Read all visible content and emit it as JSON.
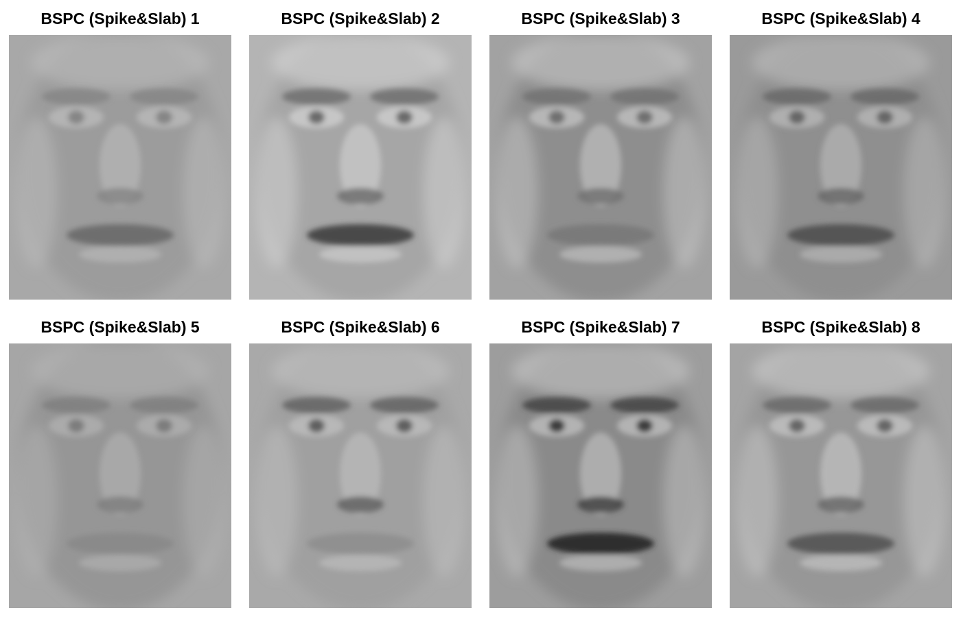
{
  "figure": {
    "panels": [
      {
        "title": "BSPC (Spike&Slab) 1",
        "bg": "#a8a8a8",
        "face": "#9c9c9c",
        "feature": "#858585",
        "mouth": "#6e6e6e",
        "highlight": "#bdbdbd",
        "icon": "face-component-image"
      },
      {
        "title": "BSPC (Spike&Slab) 2",
        "bg": "#b4b4b4",
        "face": "#a6a6a6",
        "feature": "#6a6a6a",
        "mouth": "#4a4a4a",
        "highlight": "#d4d4d4",
        "icon": "face-component-image"
      },
      {
        "title": "BSPC (Spike&Slab) 3",
        "bg": "#a2a2a2",
        "face": "#8e8e8e",
        "feature": "#6f6f6f",
        "mouth": "#7a7a7a",
        "highlight": "#c7c7c7",
        "icon": "face-component-image"
      },
      {
        "title": "BSPC (Spike&Slab) 4",
        "bg": "#9a9a9a",
        "face": "#8f8f8f",
        "feature": "#666666",
        "mouth": "#555555",
        "highlight": "#bcbcbc",
        "icon": "face-component-image"
      },
      {
        "title": "BSPC (Spike&Slab) 5",
        "bg": "#a6a6a6",
        "face": "#969696",
        "feature": "#7d7d7d",
        "mouth": "#8a8a8a",
        "highlight": "#b4b4b4",
        "icon": "face-component-image"
      },
      {
        "title": "BSPC (Spike&Slab) 6",
        "bg": "#a9a9a9",
        "face": "#a0a0a0",
        "feature": "#5e5e5e",
        "mouth": "#909090",
        "highlight": "#c2c2c2",
        "icon": "face-component-image"
      },
      {
        "title": "BSPC (Spike&Slab) 7",
        "bg": "#9d9d9d",
        "face": "#8a8a8a",
        "feature": "#3e3e3e",
        "mouth": "#2e2e2e",
        "highlight": "#c4c4c4",
        "icon": "face-component-image"
      },
      {
        "title": "BSPC (Spike&Slab) 8",
        "bg": "#a4a4a4",
        "face": "#979797",
        "feature": "#666666",
        "mouth": "#5a5a5a",
        "highlight": "#c9c9c9",
        "icon": "face-component-image"
      }
    ]
  }
}
